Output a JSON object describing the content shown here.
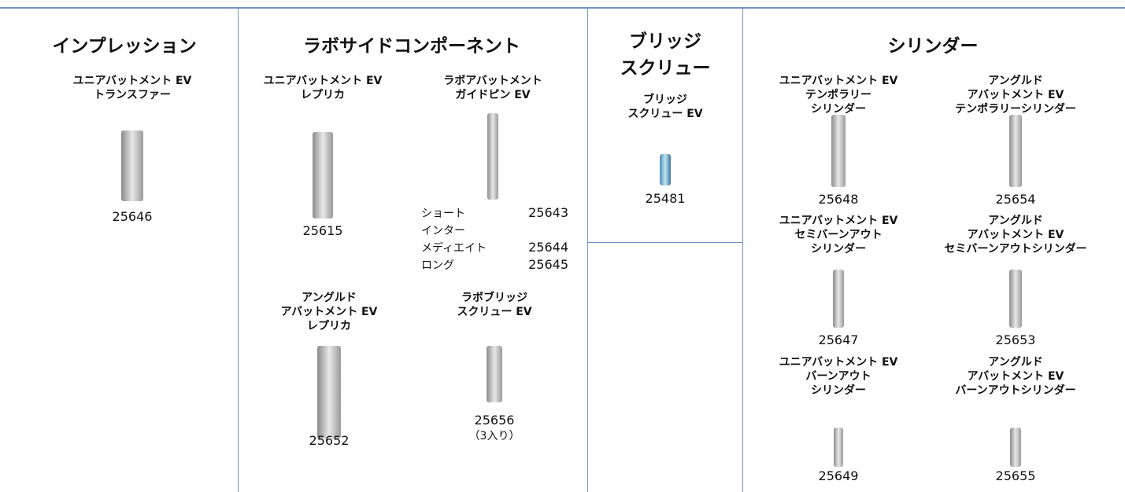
{
  "sections": [
    {
      "title": [
        "インプレッション"
      ],
      "items": [
        {
          "name": [
            "ユニアバットメント EV",
            "トランスファー"
          ],
          "code": "25646"
        }
      ]
    },
    {
      "title": [
        "ラボサイドコンポーネント"
      ],
      "items": [
        {
          "name": [
            "ユニアバットメント EV",
            "レプリカ"
          ],
          "code": "25615"
        },
        {
          "name": [
            "ラボアバットメント",
            "ガイドピン EV"
          ],
          "variants": [
            {
              "label": [
                "ショート"
              ],
              "code": "25643"
            },
            {
              "label": [
                "インター",
                "メディエイト"
              ],
              "code": "25644"
            },
            {
              "label": [
                "ロング"
              ],
              "code": "25645"
            }
          ]
        },
        {
          "name": [
            "アングルド",
            "アバットメント EV",
            "レプリカ"
          ],
          "code": "25652"
        },
        {
          "name": [
            "ラボブリッジ",
            "スクリュー EV"
          ],
          "code": "25656",
          "note": "（3入り）"
        }
      ]
    },
    {
      "title": [
        "ブリッジ",
        "スクリュー"
      ],
      "items": [
        {
          "name": [
            "ブリッジ",
            "スクリュー EV"
          ],
          "code": "25481"
        }
      ]
    },
    {
      "title": [
        "シリンダー"
      ],
      "items": [
        {
          "name": [
            "ユニアバットメント EV",
            "テンポラリー",
            "シリンダー"
          ],
          "code": "25648"
        },
        {
          "name": [
            "アングルド",
            "アバットメント EV",
            "テンポラリーシリンダー"
          ],
          "code": "25654"
        },
        {
          "name": [
            "ユニアバットメント EV",
            "セミバーンアウト",
            "シリンダー"
          ],
          "code": "25647"
        },
        {
          "name": [
            "アングルド",
            "アバットメント EV",
            "セミバーンアウトシリンダー"
          ],
          "code": "25653"
        },
        {
          "name": [
            "ユニアバットメント EV",
            "バーンアウト",
            "シリンダー"
          ],
          "code": "25649"
        },
        {
          "name": [
            "アングルド",
            "アバットメント EV",
            "バーンアウトシリンダー"
          ],
          "code": "25655"
        }
      ]
    }
  ]
}
